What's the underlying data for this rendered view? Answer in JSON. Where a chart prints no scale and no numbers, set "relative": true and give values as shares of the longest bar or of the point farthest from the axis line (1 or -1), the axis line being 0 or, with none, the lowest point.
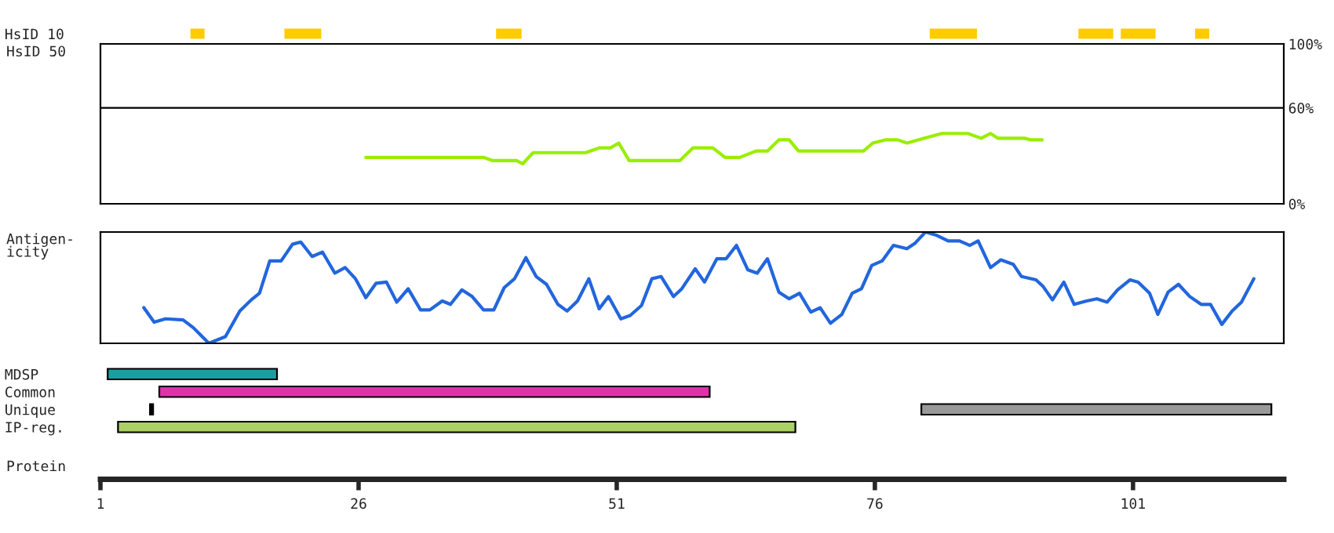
{
  "chart_data": [
    {
      "type": "bar",
      "orientation": "horizontal",
      "categories": [
        "HsID 10"
      ],
      "xlim": [
        1,
        115.6
      ],
      "tick_labels": "y",
      "series": [
        {
          "color": "#ffcc00",
          "values": [
            1.2
          ],
          "base": [
            9.8
          ]
        },
        {
          "color": "#ffcc00",
          "values": [
            3.4
          ],
          "base": [
            18.9
          ]
        },
        {
          "color": "#ffcc00",
          "values": [
            2.3
          ],
          "base": [
            39.4
          ]
        },
        {
          "color": "#ffcc00",
          "values": [
            4.4
          ],
          "base": [
            81.4
          ]
        },
        {
          "color": "#ffcc00",
          "values": [
            3.2
          ],
          "base": [
            95.8
          ]
        },
        {
          "color": "#ffcc00",
          "values": [
            3.2
          ],
          "base": [
            99.9
          ]
        },
        {
          "color": "#ffcc00",
          "values": [
            1.2
          ],
          "base": [
            107.1
          ]
        }
      ]
    },
    {
      "type": "line",
      "ylabel": "HsID 50",
      "xlim": [
        1,
        115.6
      ],
      "ylim": [
        0,
        100
      ],
      "yticks": [
        {
          "value": 0,
          "label": "0%"
        },
        {
          "value": 60,
          "label": "60%"
        },
        {
          "value": 100,
          "label": "100%"
        }
      ],
      "grid": "y",
      "tick_labels": "y",
      "series": [
        {
          "color": "#99ee00",
          "x": [
            26.7,
            38.1,
            39,
            41.3,
            41.9,
            42.9,
            48,
            49.3,
            50.4,
            51.2,
            52.2,
            57.1,
            58.4,
            60.3,
            61.5,
            62.9,
            64.5,
            65.6,
            66.7,
            67.7,
            68.6,
            74.9,
            75.8,
            77,
            78.2,
            79.1,
            80.8,
            82.5,
            85,
            86.3,
            87.2,
            87.9,
            90.5,
            91.1,
            92.2
          ],
          "values": [
            29,
            29,
            27,
            27,
            25,
            32,
            32,
            35,
            35,
            38,
            27,
            27,
            35,
            35,
            29,
            29,
            33,
            33,
            40,
            40,
            33,
            33,
            38,
            40,
            40,
            38,
            41,
            44,
            44,
            41,
            44,
            41,
            41,
            40,
            40
          ]
        }
      ]
    },
    {
      "type": "line",
      "ylabel": "Antigen-\nicity",
      "relative": true,
      "xlim": [
        1,
        115.6
      ],
      "tick_labels": false,
      "series": [
        {
          "color": "#2266dd",
          "x": [
            5.2,
            6.2,
            7.3,
            9.0,
            10.0,
            11.5,
            13.1,
            14.5,
            15.6,
            16.4,
            17.4,
            18.5,
            19.6,
            20.4,
            21.5,
            22.5,
            23.7,
            24.7,
            25.7,
            26.7,
            27.7,
            28.7,
            29.7,
            30.8,
            32.0,
            32.9,
            34.1,
            34.9,
            36.0,
            37.0,
            38.1,
            39.1,
            40.1,
            41.1,
            42.2,
            43.2,
            44.2,
            45.3,
            46.2,
            47.2,
            48.3,
            49.3,
            50.2,
            51.4,
            52.3,
            53.4,
            54.4,
            55.3,
            56.5,
            57.3,
            58.6,
            59.5,
            60.7,
            61.6,
            62.6,
            63.7,
            64.6,
            65.6,
            66.7,
            67.7,
            68.7,
            69.8,
            70.7,
            71.7,
            72.8,
            73.8,
            74.7,
            75.7,
            76.7,
            77.8,
            79.1,
            79.9,
            80.9,
            82.0,
            83.1,
            84.2,
            85.2,
            86.0,
            87.2,
            88.2,
            89.4,
            90.2,
            91.6,
            92.3,
            93.2,
            94.3,
            95.3,
            96.5,
            97.5,
            98.5,
            99.5,
            100.7,
            101.5,
            102.6,
            103.4,
            104.4,
            105.4,
            106.5,
            107.6,
            108.5,
            109.6,
            110.6,
            111.5,
            112.7
          ],
          "values": [
            0.32,
            0.19,
            0.22,
            0.21,
            0.14,
            0,
            0.06,
            0.29,
            0.39,
            0.45,
            0.74,
            0.74,
            0.89,
            0.91,
            0.78,
            0.82,
            0.63,
            0.68,
            0.58,
            0.41,
            0.54,
            0.55,
            0.37,
            0.49,
            0.3,
            0.3,
            0.38,
            0.35,
            0.48,
            0.42,
            0.3,
            0.3,
            0.5,
            0.58,
            0.77,
            0.6,
            0.53,
            0.35,
            0.29,
            0.38,
            0.58,
            0.31,
            0.42,
            0.22,
            0.25,
            0.34,
            0.58,
            0.6,
            0.42,
            0.49,
            0.67,
            0.55,
            0.76,
            0.76,
            0.88,
            0.66,
            0.63,
            0.76,
            0.46,
            0.4,
            0.45,
            0.28,
            0.32,
            0.18,
            0.26,
            0.45,
            0.49,
            0.7,
            0.74,
            0.88,
            0.85,
            0.9,
            1.0,
            0.97,
            0.92,
            0.92,
            0.88,
            0.92,
            0.68,
            0.75,
            0.71,
            0.6,
            0.57,
            0.51,
            0.39,
            0.55,
            0.35,
            0.38,
            0.4,
            0.37,
            0.48,
            0.57,
            0.55,
            0.45,
            0.26,
            0.46,
            0.53,
            0.42,
            0.35,
            0.35,
            0.17,
            0.29,
            0.37,
            0.58
          ]
        }
      ]
    },
    {
      "type": "bar",
      "orientation": "horizontal",
      "categories": [
        "MDSP",
        "Common",
        "Unique",
        "IP-reg."
      ],
      "xlabel": "Protein",
      "xlim": [
        1,
        115.6
      ],
      "xticks": [
        1,
        26,
        51,
        76,
        101
      ],
      "series": [
        {
          "colors": [
            "#1a9fa0",
            "#dd33aa",
            "#999999",
            "#aad066"
          ],
          "values": [
            16.4,
            53.3,
            33.9,
            65.6
          ],
          "base": [
            1.7,
            6.7,
            80.5,
            2.7
          ]
        },
        {
          "color": "#000000",
          "values": [
            null,
            null,
            0.3,
            null
          ],
          "base": [
            null,
            null,
            5.8,
            null
          ]
        }
      ]
    }
  ]
}
